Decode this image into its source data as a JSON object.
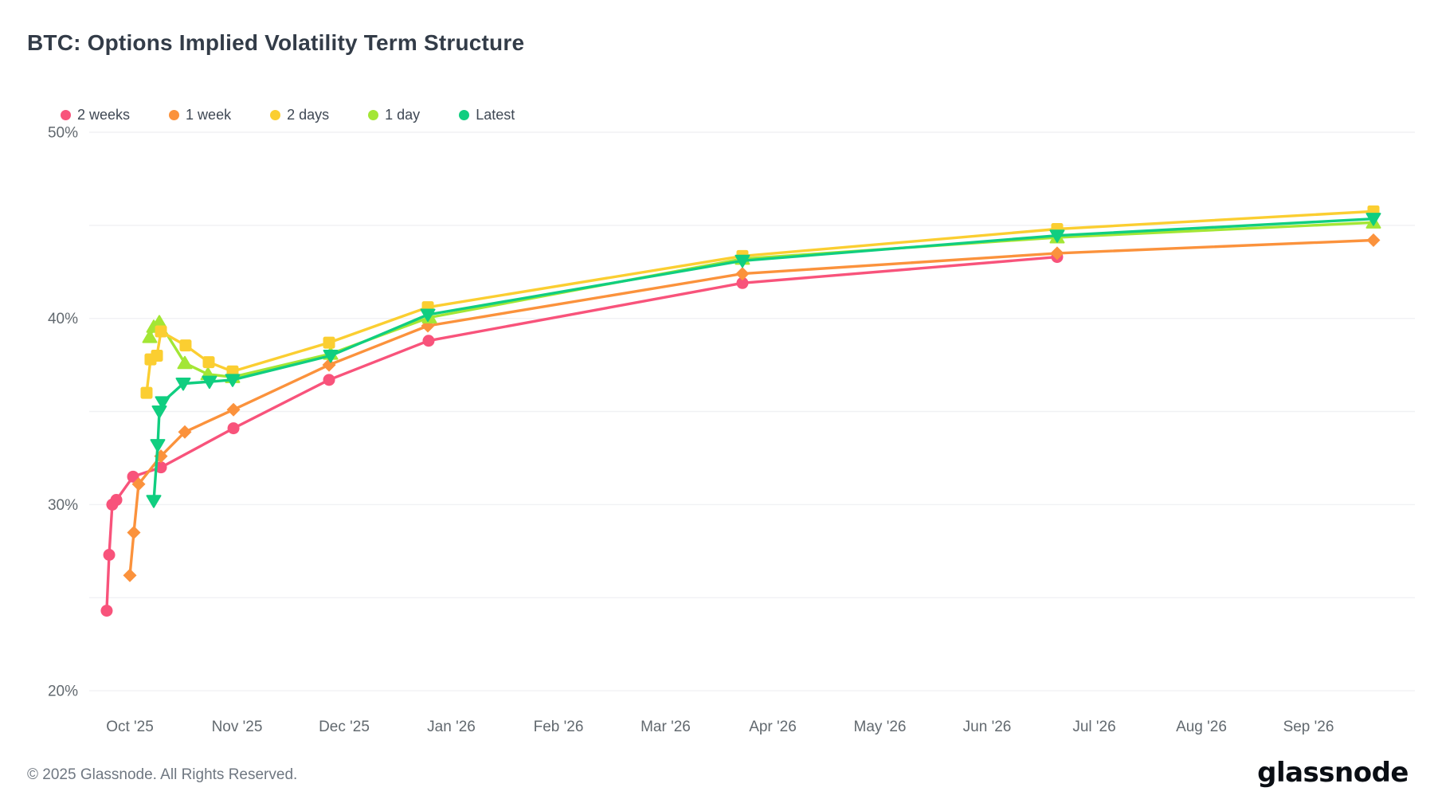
{
  "page": {
    "title": "BTC: Options Implied Volatility Term Structure",
    "footer": "© 2025 Glassnode. All Rights Reserved.",
    "brand": "glassnode"
  },
  "chart_data": {
    "type": "line",
    "title": "BTC: Options Implied Volatility Term Structure",
    "x_unit": "months_from_oct_2025",
    "x_tick_labels": [
      "Oct '25",
      "Nov '25",
      "Dec '25",
      "Jan '26",
      "Feb '26",
      "Mar '26",
      "Apr '26",
      "May '26",
      "Jun '26",
      "Jul '26",
      "Aug '26",
      "Sep '26"
    ],
    "ylim": [
      20,
      50
    ],
    "y_gridlines": [
      50,
      45,
      40,
      35,
      30,
      25,
      20
    ],
    "y_tick_labels": [
      {
        "value": 50,
        "label": "50%"
      },
      {
        "value": 40,
        "label": "40%"
      },
      {
        "value": 30,
        "label": "30%"
      },
      {
        "value": 20,
        "label": "20%"
      }
    ],
    "grid": "horizontal",
    "legend_position": "top-left",
    "series": [
      {
        "name": "2 weeks",
        "color": "#F8537B",
        "marker": "circle",
        "points": [
          [
            -0.216,
            24.3
          ],
          [
            -0.193,
            27.3
          ],
          [
            -0.164,
            30.0
          ],
          [
            -0.126,
            30.25
          ],
          [
            0.03,
            31.5
          ],
          [
            0.29,
            32.0
          ],
          [
            0.967,
            34.1
          ],
          [
            1.859,
            36.7
          ],
          [
            2.788,
            38.8
          ],
          [
            5.717,
            41.9
          ],
          [
            8.654,
            43.3
          ]
        ]
      },
      {
        "name": "1 week",
        "color": "#FB923C",
        "marker": "diamond",
        "points": [
          [
            0.0,
            26.2
          ],
          [
            0.037,
            28.5
          ],
          [
            0.082,
            31.1
          ],
          [
            0.29,
            32.6
          ],
          [
            0.513,
            33.9
          ],
          [
            0.967,
            35.1
          ],
          [
            1.859,
            37.5
          ],
          [
            2.781,
            39.6
          ],
          [
            5.717,
            42.4
          ],
          [
            8.654,
            43.5
          ],
          [
            11.606,
            44.2
          ]
        ]
      },
      {
        "name": "1 day",
        "color": "#A3E635",
        "marker": "triangle-up",
        "points": [
          [
            0.186,
            39.0
          ],
          [
            0.223,
            39.55
          ],
          [
            0.275,
            39.8
          ],
          [
            0.513,
            37.6
          ],
          [
            0.729,
            37.0
          ],
          [
            0.959,
            36.85
          ],
          [
            1.874,
            38.1
          ],
          [
            2.796,
            40.05
          ],
          [
            5.717,
            43.2
          ],
          [
            8.654,
            44.35
          ],
          [
            11.606,
            45.15
          ]
        ]
      },
      {
        "name": "2 days",
        "color": "#FBCE31",
        "marker": "square",
        "points": [
          [
            0.156,
            36.0
          ],
          [
            0.193,
            37.8
          ],
          [
            0.253,
            38.0
          ],
          [
            0.29,
            39.3
          ],
          [
            0.52,
            38.55
          ],
          [
            0.736,
            37.65
          ],
          [
            0.959,
            37.15
          ],
          [
            1.859,
            38.7
          ],
          [
            2.781,
            40.6
          ],
          [
            5.717,
            43.35
          ],
          [
            8.654,
            44.8
          ],
          [
            11.606,
            45.75
          ]
        ]
      },
      {
        "name": "Latest",
        "color": "#10CE80",
        "marker": "triangle-down",
        "points": [
          [
            0.223,
            30.2
          ],
          [
            0.26,
            33.2
          ],
          [
            0.275,
            35.0
          ],
          [
            0.305,
            35.5
          ],
          [
            0.498,
            36.5
          ],
          [
            0.743,
            36.6
          ],
          [
            0.959,
            36.7
          ],
          [
            1.874,
            38.0
          ],
          [
            2.781,
            40.2
          ],
          [
            5.717,
            43.1
          ],
          [
            8.654,
            44.45
          ],
          [
            11.606,
            45.35
          ]
        ]
      }
    ],
    "legend_order": [
      "2 weeks",
      "1 week",
      "2 days",
      "1 day",
      "Latest"
    ]
  }
}
